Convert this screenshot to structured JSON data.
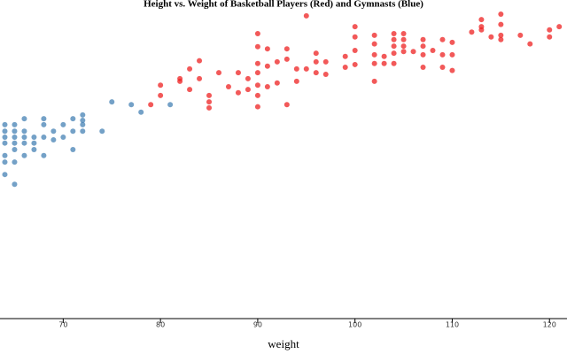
{
  "chart_data": {
    "type": "scatter",
    "title": "Height vs. Weight of Basketball Players (Red) and Gymnasts (Blue)",
    "x_label": "weight",
    "xlim": [
      63.5,
      121.8
    ],
    "ylim": [
      30,
      88
    ],
    "xticks": [
      70,
      80,
      90,
      100,
      110,
      120
    ],
    "series": [
      {
        "color": "#4682b4",
        "x": [
          64,
          64,
          64,
          64,
          64,
          64,
          64,
          65,
          65,
          65,
          65,
          65,
          65,
          65,
          66,
          66,
          66,
          66,
          66,
          67,
          67,
          67,
          68,
          68,
          68,
          68,
          69,
          69,
          70,
          70,
          71,
          71,
          71,
          72,
          72,
          72,
          72,
          74,
          75,
          77,
          78,
          81
        ],
        "values": [
          65.8,
          64.6,
          63.5,
          62.4,
          60.1,
          58.9,
          56.6,
          65.8,
          64.6,
          63.5,
          62.4,
          61.2,
          58.9,
          54.8,
          66.9,
          64.6,
          63.5,
          62.4,
          60.1,
          63.5,
          62.4,
          61.2,
          66.9,
          65.8,
          63.5,
          60.1,
          64.6,
          63.0,
          65.8,
          63.5,
          66.9,
          64.6,
          61.2,
          67.6,
          66.6,
          65.8,
          64.6,
          64.6,
          70.0,
          69.5,
          68.1,
          69.5
        ]
      },
      {
        "color": "#ee2222",
        "x": [
          79,
          80,
          80,
          82,
          82,
          83,
          83,
          84,
          84,
          85,
          85,
          85,
          86,
          87,
          88,
          88,
          89,
          89,
          90,
          90,
          90,
          90,
          90,
          90,
          90,
          91,
          91,
          91,
          92,
          92,
          93,
          93,
          93,
          94,
          94,
          95,
          95,
          96,
          96,
          96,
          97,
          97,
          99,
          99,
          100,
          100,
          100,
          100,
          102,
          102,
          102,
          102,
          102,
          103,
          103,
          104,
          104,
          104,
          104,
          104,
          105,
          105,
          105,
          105,
          106,
          107,
          107,
          107,
          107,
          108,
          109,
          109,
          109,
          110,
          110,
          110,
          112,
          113,
          113,
          113,
          114,
          115,
          115,
          115,
          115,
          117,
          118,
          120,
          120,
          121
        ],
        "values": [
          69.5,
          73.1,
          71.2,
          74.3,
          73.8,
          76.1,
          72.3,
          77.6,
          74.3,
          71.2,
          70.0,
          68.9,
          75.4,
          72.8,
          75.4,
          71.7,
          74.3,
          72.3,
          82.6,
          80.2,
          77.1,
          75.4,
          73.1,
          71.2,
          69.1,
          79.8,
          76.6,
          72.8,
          77.4,
          73.5,
          79.8,
          77.9,
          69.5,
          76.1,
          73.8,
          85.9,
          76.1,
          79.0,
          77.4,
          75.4,
          77.4,
          75.1,
          78.4,
          76.4,
          83.9,
          82.0,
          79.5,
          76.9,
          82.3,
          80.7,
          78.7,
          77.1,
          73.8,
          78.4,
          77.1,
          82.6,
          81.5,
          80.3,
          79.0,
          77.1,
          82.6,
          81.5,
          80.3,
          79.3,
          79.3,
          81.5,
          80.3,
          78.7,
          76.4,
          79.5,
          81.5,
          78.7,
          76.4,
          81.0,
          78.7,
          75.8,
          82.9,
          85.2,
          83.9,
          83.3,
          82.0,
          86.2,
          84.3,
          82.3,
          81.5,
          82.3,
          80.7,
          83.3,
          82.0,
          83.9
        ]
      }
    ]
  }
}
